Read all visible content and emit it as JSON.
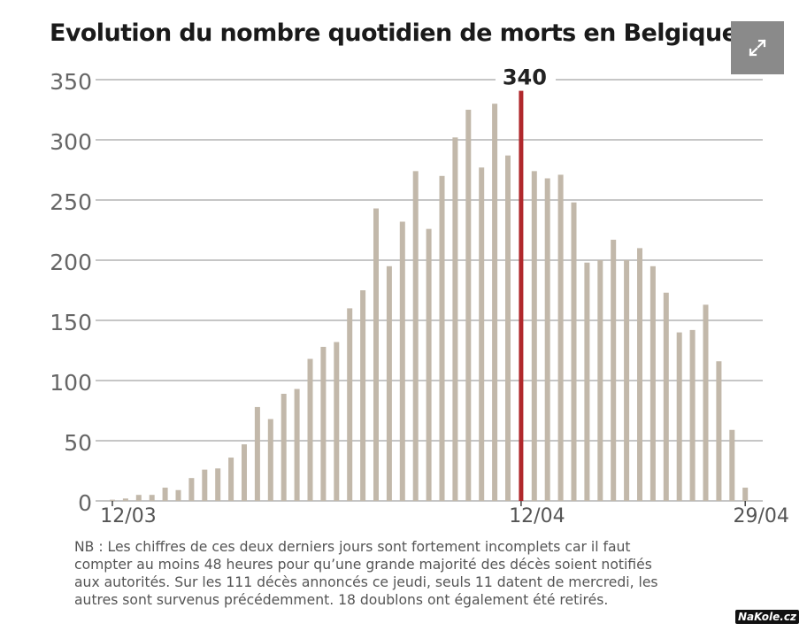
{
  "chart_data": {
    "type": "bar",
    "title": "Evolution du nombre quotidien de morts en Belgique",
    "ylim": [
      0,
      350
    ],
    "yticks": [
      0,
      50,
      100,
      150,
      200,
      250,
      300,
      350
    ],
    "grid": true,
    "x_labels": [
      {
        "index": 0,
        "label": "12/03"
      },
      {
        "index": 31,
        "label": "12/04"
      },
      {
        "index": 48,
        "label": "29/04"
      }
    ],
    "categories": [
      "12/03",
      "13/03",
      "14/03",
      "15/03",
      "16/03",
      "17/03",
      "18/03",
      "19/03",
      "20/03",
      "21/03",
      "22/03",
      "23/03",
      "24/03",
      "25/03",
      "26/03",
      "27/03",
      "28/03",
      "29/03",
      "30/03",
      "31/03",
      "01/04",
      "02/04",
      "03/04",
      "04/04",
      "05/04",
      "06/04",
      "07/04",
      "08/04",
      "09/04",
      "10/04",
      "11/04",
      "12/04",
      "13/04",
      "14/04",
      "15/04",
      "16/04",
      "17/04",
      "18/04",
      "19/04",
      "20/04",
      "21/04",
      "22/04",
      "23/04",
      "24/04",
      "25/04",
      "26/04",
      "27/04",
      "28/04",
      "29/04"
    ],
    "values": [
      1,
      2,
      5,
      5,
      11,
      9,
      19,
      26,
      27,
      36,
      47,
      78,
      68,
      89,
      93,
      118,
      128,
      132,
      160,
      175,
      243,
      195,
      232,
      274,
      226,
      270,
      302,
      325,
      277,
      330,
      287,
      340,
      274,
      268,
      271,
      248,
      198,
      200,
      217,
      200,
      210,
      195,
      173,
      140,
      142,
      163,
      116,
      59,
      11
    ],
    "highlight": {
      "index": 31,
      "value": 340,
      "label": "340",
      "color": "#b0282c"
    },
    "bar_color": "#c2b8aa"
  },
  "note_lines": [
    "NB : Les chiffres de ces deux derniers jours sont fortement incomplets car il faut",
    "compter au moins 48 heures pour qu’une grande majorité des décès soient notifiés",
    "aux autorités. Sur les 111 décès annoncés ce jeudi, seuls 11 datent de mercredi, les",
    "autres sont survenus précédemment. 18 doublons ont également été retirés."
  ],
  "watermark": "NaKole.cz",
  "expand_icon": "expand-arrows-icon"
}
